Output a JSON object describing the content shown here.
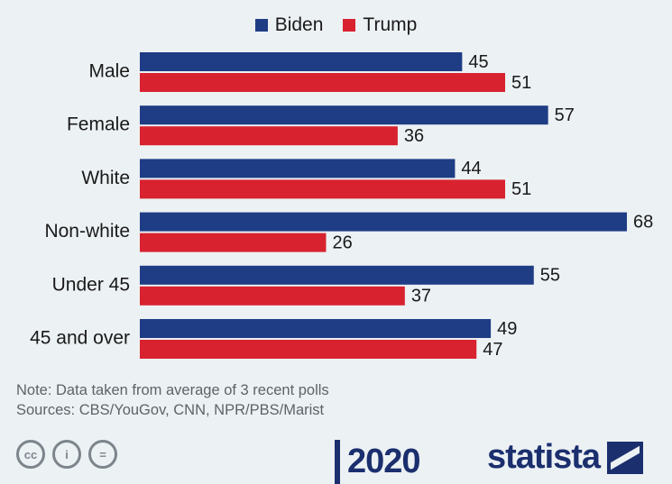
{
  "chart_data": {
    "type": "bar",
    "orientation": "horizontal",
    "categories": [
      "Male",
      "Female",
      "White",
      "Non-white",
      "Under 45",
      "45 and over"
    ],
    "series": [
      {
        "name": "Biden",
        "color": "#1f3d85",
        "values": [
          45,
          57,
          44,
          68,
          55,
          49
        ]
      },
      {
        "name": "Trump",
        "color": "#d8222f",
        "values": [
          51,
          36,
          51,
          26,
          37,
          47
        ]
      }
    ],
    "xlim": [
      0,
      68
    ],
    "legend_position": "top-center",
    "grid": false
  },
  "note": "Note: Data taken from average of 3 recent polls",
  "sources": "Sources: CBS/YouGov, CNN, NPR/PBS/Marist",
  "footer": {
    "license_icons": [
      "cc-icon",
      "attribution-icon",
      "no-derivatives-icon"
    ],
    "logo_2020": "2020",
    "brand": "statista"
  }
}
